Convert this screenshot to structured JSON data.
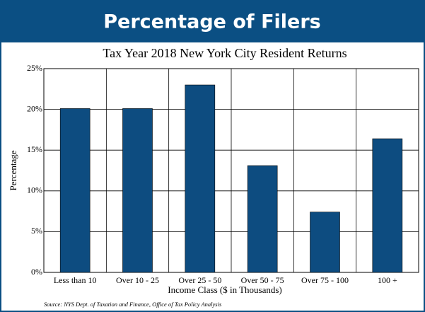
{
  "chart_data": {
    "type": "bar",
    "header": "Percentage of Filers",
    "title": "Tax Year 2018 New York City Resident Returns",
    "x_label": "Income Class ($ in Thousands)",
    "y_label": "Percentage",
    "source": "Source: NYS Dept. of Taxation and Finance, Office of Tax Policy Analysis",
    "categories": [
      "Less than 10",
      "Over 10 - 25",
      "Over 25 - 50",
      "Over 50 - 75",
      "Over 75 - 100",
      "100 +"
    ],
    "values": [
      20.1,
      20.1,
      23.0,
      13.1,
      7.4,
      16.4
    ],
    "color": "#0d4c80",
    "ylim": [
      0,
      25
    ],
    "yticks": [
      {
        "value": 0,
        "label": "0%"
      },
      {
        "value": 5,
        "label": "5%"
      },
      {
        "value": 10,
        "label": "10%"
      },
      {
        "value": 15,
        "label": "15%"
      },
      {
        "value": 20,
        "label": "20%"
      },
      {
        "value": 25,
        "label": "25%"
      }
    ],
    "grid": true
  }
}
